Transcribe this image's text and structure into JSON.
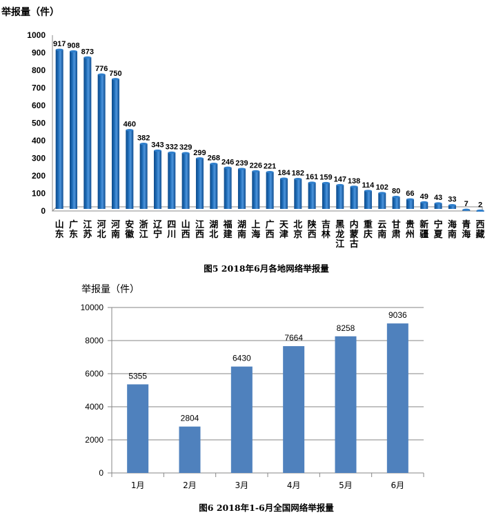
{
  "chart_data": [
    {
      "type": "bar",
      "ylabel": "举报量（件）",
      "ylim": [
        0,
        1000
      ],
      "yticks": [
        "0",
        "100",
        "200",
        "300",
        "400",
        "500",
        "600",
        "700",
        "800",
        "900",
        "1000"
      ],
      "categories": [
        "山东",
        "广东",
        "江苏",
        "河北",
        "河南",
        "安徽",
        "浙江",
        "辽宁",
        "四川",
        "山西",
        "江西",
        "湖北",
        "福建",
        "湖南",
        "上海",
        "广西",
        "天津",
        "北京",
        "陕西",
        "吉林",
        "黑龙江",
        "内蒙古",
        "重庆",
        "云南",
        "甘肃",
        "贵州",
        "新疆",
        "宁夏",
        "海南",
        "青海",
        "西藏"
      ],
      "values": [
        917,
        908,
        873,
        776,
        750,
        460,
        382,
        343,
        332,
        329,
        299,
        268,
        246,
        239,
        226,
        221,
        184,
        182,
        161,
        159,
        147,
        138,
        114,
        102,
        80,
        66,
        49,
        43,
        33,
        7,
        2
      ],
      "value_labels": [
        "917",
        "908",
        "873",
        "776",
        "750",
        "460",
        "382",
        "343",
        "332",
        "329",
        "299",
        "268",
        "246",
        "239",
        "226",
        "221",
        "184",
        "182",
        "161",
        "159",
        "147",
        "138",
        "114",
        "102",
        "80",
        "66",
        "49",
        "43",
        "33",
        "7",
        "2"
      ],
      "caption": "图5 2018年6月各地网络举报量",
      "color": "#1f6db8",
      "grid": false
    },
    {
      "type": "bar",
      "ylabel": "举报量（件）",
      "ylim": [
        0,
        10000
      ],
      "yticks": [
        "0",
        "2000",
        "4000",
        "6000",
        "8000",
        "10000"
      ],
      "categories": [
        "1月",
        "2月",
        "3月",
        "4月",
        "5月",
        "6月"
      ],
      "values": [
        5355,
        2804,
        6430,
        7664,
        8258,
        9036
      ],
      "value_labels": [
        "5355",
        "2804",
        "6430",
        "7664",
        "8258",
        "9036"
      ],
      "caption": "图6 2018年1-6月全国网络举报量",
      "color": "#4f81bd",
      "grid": true
    }
  ]
}
